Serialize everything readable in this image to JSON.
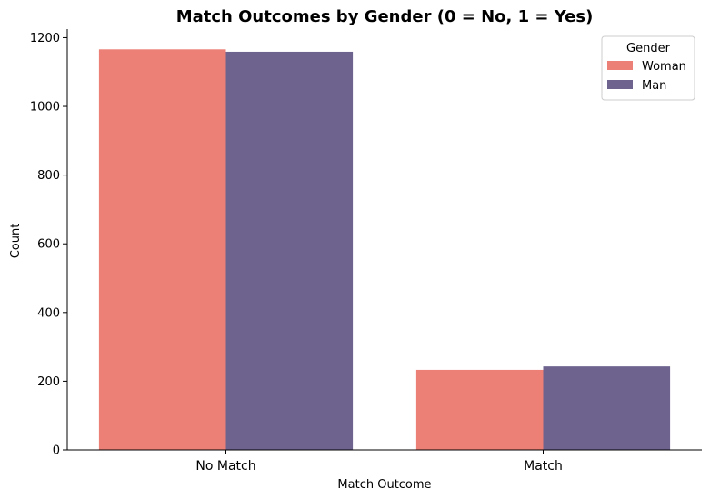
{
  "chart_data": {
    "type": "bar",
    "title": "Match Outcomes by Gender (0 = No, 1 = Yes)",
    "xlabel": "Match Outcome",
    "ylabel": "Count",
    "categories": [
      "No Match",
      "Match"
    ],
    "series": [
      {
        "name": "Woman",
        "color": "#ec7f76",
        "values": [
          1166,
          233
        ]
      },
      {
        "name": "Man",
        "color": "#6e638e",
        "values": [
          1159,
          243
        ]
      }
    ],
    "ylim": [
      0,
      1225
    ],
    "yticks": [
      0,
      200,
      400,
      600,
      800,
      1000,
      1200
    ],
    "legend": {
      "title": "Gender",
      "position": "top-right"
    },
    "grid": false
  }
}
